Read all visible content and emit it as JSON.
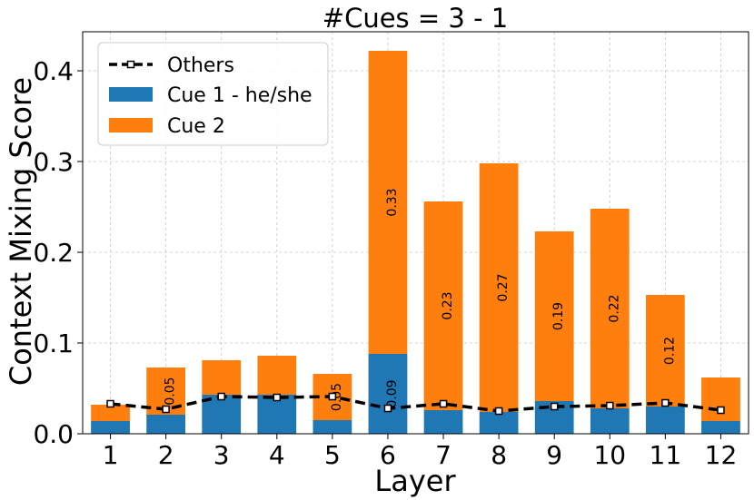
{
  "chart_data": {
    "type": "bar",
    "title": "#Cues = 3 - 1",
    "xlabel": "Layer",
    "ylabel": "Context Mixing Score",
    "categories": [
      "1",
      "2",
      "3",
      "4",
      "5",
      "6",
      "7",
      "8",
      "9",
      "10",
      "11",
      "12"
    ],
    "ylim": [
      0,
      0.443
    ],
    "yticks": [
      0.0,
      0.1,
      0.2,
      0.3,
      0.4
    ],
    "ytick_labels": [
      "0.0",
      "0.1",
      "0.2",
      "0.3",
      "0.4"
    ],
    "grid": true,
    "legend_position": "top-left",
    "stacked": true,
    "series": [
      {
        "name": "Cue 1 - he/she",
        "kind": "bar",
        "color": "#1f77b4",
        "values": [
          0.014,
          0.021,
          0.043,
          0.043,
          0.015,
          0.088,
          0.026,
          0.024,
          0.036,
          0.028,
          0.03,
          0.014
        ]
      },
      {
        "name": "Cue 2",
        "kind": "bar",
        "color": "#ff7f0e",
        "values": [
          0.018,
          0.052,
          0.038,
          0.043,
          0.051,
          0.334,
          0.23,
          0.274,
          0.187,
          0.22,
          0.123,
          0.048
        ]
      },
      {
        "name": "Others",
        "kind": "line",
        "color": "#000000",
        "values": [
          0.033,
          0.027,
          0.041,
          0.04,
          0.041,
          0.028,
          0.033,
          0.025,
          0.03,
          0.031,
          0.034,
          0.026
        ]
      }
    ],
    "bar_labels": [
      {
        "index": 1,
        "series": "Cue 2",
        "text": "0.05"
      },
      {
        "index": 4,
        "series": "Cue 2",
        "text": "0.05"
      },
      {
        "index": 5,
        "series": "Cue 1 - he/she",
        "text": "0.09"
      },
      {
        "index": 5,
        "series": "Cue 2",
        "text": "0.33"
      },
      {
        "index": 6,
        "series": "Cue 2",
        "text": "0.23"
      },
      {
        "index": 7,
        "series": "Cue 2",
        "text": "0.27"
      },
      {
        "index": 8,
        "series": "Cue 2",
        "text": "0.19"
      },
      {
        "index": 9,
        "series": "Cue 2",
        "text": "0.22"
      },
      {
        "index": 10,
        "series": "Cue 2",
        "text": "0.12"
      }
    ],
    "legend": [
      {
        "label": "Others",
        "kind": "line"
      },
      {
        "label": "Cue 1 - he/she",
        "kind": "bar"
      },
      {
        "label": "Cue 2",
        "kind": "bar"
      }
    ]
  }
}
